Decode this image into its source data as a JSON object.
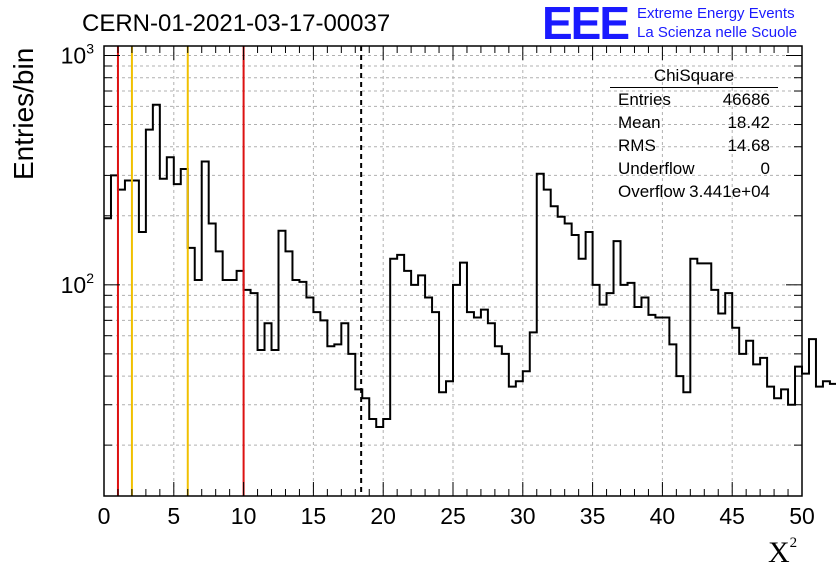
{
  "title": "CERN-01-2021-03-17-00037",
  "logo": {
    "mark": "EEE",
    "line1": "Extreme Energy Events",
    "line2": "La Scienza nelle Scuole",
    "color": "#1a1aff"
  },
  "stats_box": {
    "title": "ChiSquare",
    "rows": [
      {
        "key": "Entries",
        "value": "46686"
      },
      {
        "key": "Mean",
        "value": "18.42"
      },
      {
        "key": "RMS",
        "value": "14.68"
      },
      {
        "key": "Underflow",
        "value": "0"
      },
      {
        "key": "Overflow",
        "value": "3.441e+04"
      }
    ]
  },
  "chart_data": {
    "type": "histogram",
    "ylabel": "Entries/bin",
    "xlabel": "X",
    "xlabel_superscript": "2",
    "xlim": [
      0,
      50
    ],
    "ylim": [
      12,
      1100
    ],
    "yscale": "log",
    "x_ticks": [
      "0",
      "5",
      "10",
      "15",
      "20",
      "25",
      "30",
      "35",
      "40",
      "45",
      "50"
    ],
    "y_ticks": [
      {
        "base": "10",
        "exp": "2",
        "value": 100
      },
      {
        "base": "10",
        "exp": "3",
        "value": 1000
      }
    ],
    "grid": true,
    "bin_width": 0.5,
    "counts": [
      195,
      300,
      260,
      285,
      285,
      170,
      475,
      610,
      290,
      360,
      275,
      320,
      145,
      105,
      345,
      185,
      140,
      105,
      105,
      115,
      95,
      92,
      52,
      68,
      52,
      172,
      140,
      105,
      103,
      88,
      76,
      70,
      54,
      55,
      68,
      50,
      35,
      32,
      26,
      24,
      26,
      130,
      135,
      115,
      100,
      110,
      88,
      76,
      34,
      38,
      100,
      125,
      76,
      72,
      78,
      68,
      54,
      50,
      36,
      38,
      42,
      62,
      305,
      260,
      220,
      198,
      185,
      165,
      130,
      170,
      100,
      82,
      92,
      155,
      100,
      102,
      80,
      88,
      74,
      72,
      72,
      55,
      40,
      34,
      130,
      124,
      124,
      95,
      75,
      92,
      65,
      50,
      57,
      45,
      48,
      36,
      32,
      35,
      30,
      44,
      41,
      58,
      36,
      38,
      37
    ],
    "vertical_lines": [
      {
        "x": 1,
        "color": "#dd1111",
        "style": "solid"
      },
      {
        "x": 2,
        "color": "#f0c000",
        "style": "solid"
      },
      {
        "x": 6,
        "color": "#f0c000",
        "style": "solid"
      },
      {
        "x": 10,
        "color": "#dd1111",
        "style": "solid"
      },
      {
        "x": 18.42,
        "color": "#000000",
        "style": "dashed"
      }
    ]
  }
}
